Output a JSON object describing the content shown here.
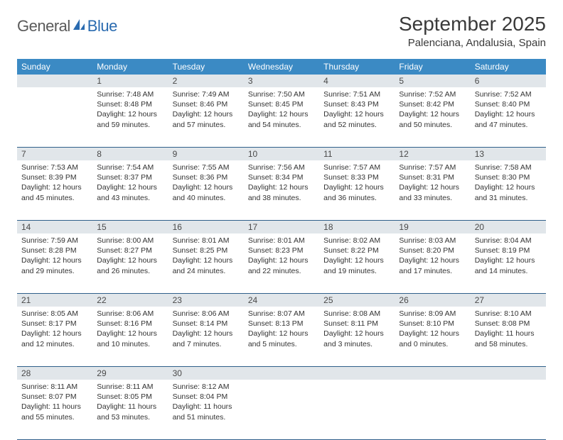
{
  "header": {
    "logo_general": "General",
    "logo_blue": "Blue",
    "month_title": "September 2025",
    "location": "Palenciana, Andalusia, Spain"
  },
  "colors": {
    "header_bar": "#3b8ac4",
    "daynum_bg": "#e1e6ea",
    "rule": "#2f5f8a",
    "logo_blue": "#2a6bb0",
    "text": "#333333"
  },
  "dow": [
    "Sunday",
    "Monday",
    "Tuesday",
    "Wednesday",
    "Thursday",
    "Friday",
    "Saturday"
  ],
  "weeks": [
    {
      "nums": [
        "",
        "1",
        "2",
        "3",
        "4",
        "5",
        "6"
      ],
      "cells": [
        {
          "sunrise": "",
          "sunset": "",
          "daylight": ""
        },
        {
          "sunrise": "Sunrise: 7:48 AM",
          "sunset": "Sunset: 8:48 PM",
          "daylight": "Daylight: 12 hours and 59 minutes."
        },
        {
          "sunrise": "Sunrise: 7:49 AM",
          "sunset": "Sunset: 8:46 PM",
          "daylight": "Daylight: 12 hours and 57 minutes."
        },
        {
          "sunrise": "Sunrise: 7:50 AM",
          "sunset": "Sunset: 8:45 PM",
          "daylight": "Daylight: 12 hours and 54 minutes."
        },
        {
          "sunrise": "Sunrise: 7:51 AM",
          "sunset": "Sunset: 8:43 PM",
          "daylight": "Daylight: 12 hours and 52 minutes."
        },
        {
          "sunrise": "Sunrise: 7:52 AM",
          "sunset": "Sunset: 8:42 PM",
          "daylight": "Daylight: 12 hours and 50 minutes."
        },
        {
          "sunrise": "Sunrise: 7:52 AM",
          "sunset": "Sunset: 8:40 PM",
          "daylight": "Daylight: 12 hours and 47 minutes."
        }
      ]
    },
    {
      "nums": [
        "7",
        "8",
        "9",
        "10",
        "11",
        "12",
        "13"
      ],
      "cells": [
        {
          "sunrise": "Sunrise: 7:53 AM",
          "sunset": "Sunset: 8:39 PM",
          "daylight": "Daylight: 12 hours and 45 minutes."
        },
        {
          "sunrise": "Sunrise: 7:54 AM",
          "sunset": "Sunset: 8:37 PM",
          "daylight": "Daylight: 12 hours and 43 minutes."
        },
        {
          "sunrise": "Sunrise: 7:55 AM",
          "sunset": "Sunset: 8:36 PM",
          "daylight": "Daylight: 12 hours and 40 minutes."
        },
        {
          "sunrise": "Sunrise: 7:56 AM",
          "sunset": "Sunset: 8:34 PM",
          "daylight": "Daylight: 12 hours and 38 minutes."
        },
        {
          "sunrise": "Sunrise: 7:57 AM",
          "sunset": "Sunset: 8:33 PM",
          "daylight": "Daylight: 12 hours and 36 minutes."
        },
        {
          "sunrise": "Sunrise: 7:57 AM",
          "sunset": "Sunset: 8:31 PM",
          "daylight": "Daylight: 12 hours and 33 minutes."
        },
        {
          "sunrise": "Sunrise: 7:58 AM",
          "sunset": "Sunset: 8:30 PM",
          "daylight": "Daylight: 12 hours and 31 minutes."
        }
      ]
    },
    {
      "nums": [
        "14",
        "15",
        "16",
        "17",
        "18",
        "19",
        "20"
      ],
      "cells": [
        {
          "sunrise": "Sunrise: 7:59 AM",
          "sunset": "Sunset: 8:28 PM",
          "daylight": "Daylight: 12 hours and 29 minutes."
        },
        {
          "sunrise": "Sunrise: 8:00 AM",
          "sunset": "Sunset: 8:27 PM",
          "daylight": "Daylight: 12 hours and 26 minutes."
        },
        {
          "sunrise": "Sunrise: 8:01 AM",
          "sunset": "Sunset: 8:25 PM",
          "daylight": "Daylight: 12 hours and 24 minutes."
        },
        {
          "sunrise": "Sunrise: 8:01 AM",
          "sunset": "Sunset: 8:23 PM",
          "daylight": "Daylight: 12 hours and 22 minutes."
        },
        {
          "sunrise": "Sunrise: 8:02 AM",
          "sunset": "Sunset: 8:22 PM",
          "daylight": "Daylight: 12 hours and 19 minutes."
        },
        {
          "sunrise": "Sunrise: 8:03 AM",
          "sunset": "Sunset: 8:20 PM",
          "daylight": "Daylight: 12 hours and 17 minutes."
        },
        {
          "sunrise": "Sunrise: 8:04 AM",
          "sunset": "Sunset: 8:19 PM",
          "daylight": "Daylight: 12 hours and 14 minutes."
        }
      ]
    },
    {
      "nums": [
        "21",
        "22",
        "23",
        "24",
        "25",
        "26",
        "27"
      ],
      "cells": [
        {
          "sunrise": "Sunrise: 8:05 AM",
          "sunset": "Sunset: 8:17 PM",
          "daylight": "Daylight: 12 hours and 12 minutes."
        },
        {
          "sunrise": "Sunrise: 8:06 AM",
          "sunset": "Sunset: 8:16 PM",
          "daylight": "Daylight: 12 hours and 10 minutes."
        },
        {
          "sunrise": "Sunrise: 8:06 AM",
          "sunset": "Sunset: 8:14 PM",
          "daylight": "Daylight: 12 hours and 7 minutes."
        },
        {
          "sunrise": "Sunrise: 8:07 AM",
          "sunset": "Sunset: 8:13 PM",
          "daylight": "Daylight: 12 hours and 5 minutes."
        },
        {
          "sunrise": "Sunrise: 8:08 AM",
          "sunset": "Sunset: 8:11 PM",
          "daylight": "Daylight: 12 hours and 3 minutes."
        },
        {
          "sunrise": "Sunrise: 8:09 AM",
          "sunset": "Sunset: 8:10 PM",
          "daylight": "Daylight: 12 hours and 0 minutes."
        },
        {
          "sunrise": "Sunrise: 8:10 AM",
          "sunset": "Sunset: 8:08 PM",
          "daylight": "Daylight: 11 hours and 58 minutes."
        }
      ]
    },
    {
      "nums": [
        "28",
        "29",
        "30",
        "",
        "",
        "",
        ""
      ],
      "cells": [
        {
          "sunrise": "Sunrise: 8:11 AM",
          "sunset": "Sunset: 8:07 PM",
          "daylight": "Daylight: 11 hours and 55 minutes."
        },
        {
          "sunrise": "Sunrise: 8:11 AM",
          "sunset": "Sunset: 8:05 PM",
          "daylight": "Daylight: 11 hours and 53 minutes."
        },
        {
          "sunrise": "Sunrise: 8:12 AM",
          "sunset": "Sunset: 8:04 PM",
          "daylight": "Daylight: 11 hours and 51 minutes."
        },
        {
          "sunrise": "",
          "sunset": "",
          "daylight": ""
        },
        {
          "sunrise": "",
          "sunset": "",
          "daylight": ""
        },
        {
          "sunrise": "",
          "sunset": "",
          "daylight": ""
        },
        {
          "sunrise": "",
          "sunset": "",
          "daylight": ""
        }
      ]
    }
  ]
}
